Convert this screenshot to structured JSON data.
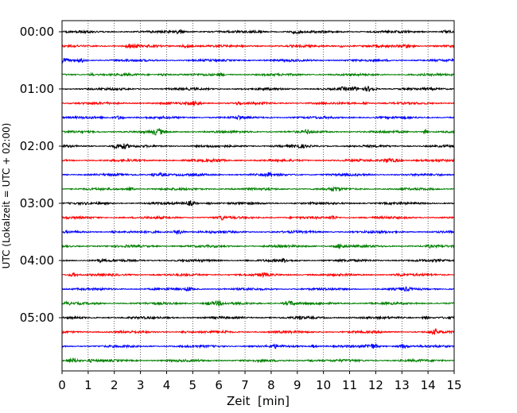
{
  "chart_data": {
    "type": "line",
    "title": "",
    "xlabel": "Zeit  [min]",
    "ylabel": "UTC (Lokalzeit = UTC + 02:00)",
    "xlim": [
      0,
      15
    ],
    "x_ticks": [
      "0",
      "1",
      "2",
      "3",
      "4",
      "5",
      "6",
      "7",
      "8",
      "9",
      "10",
      "11",
      "12",
      "13",
      "14",
      "15"
    ],
    "y_ticks": [
      "00:00",
      "01:00",
      "02:00",
      "03:00",
      "04:00",
      "05:00"
    ],
    "trace_interval_min": 15,
    "trace_count": 24,
    "color_cycle": [
      "#000000",
      "#ff0000",
      "#0000ff",
      "#008000"
    ],
    "grid": "vertical dotted lines at each minute",
    "series": [
      {
        "start": "00:00",
        "color": "#000000"
      },
      {
        "start": "00:15",
        "color": "#ff0000"
      },
      {
        "start": "00:30",
        "color": "#0000ff"
      },
      {
        "start": "00:45",
        "color": "#008000"
      },
      {
        "start": "01:00",
        "color": "#000000"
      },
      {
        "start": "01:15",
        "color": "#ff0000"
      },
      {
        "start": "01:30",
        "color": "#0000ff"
      },
      {
        "start": "01:45",
        "color": "#008000"
      },
      {
        "start": "02:00",
        "color": "#000000"
      },
      {
        "start": "02:15",
        "color": "#ff0000"
      },
      {
        "start": "02:30",
        "color": "#0000ff"
      },
      {
        "start": "02:45",
        "color": "#008000"
      },
      {
        "start": "03:00",
        "color": "#000000"
      },
      {
        "start": "03:15",
        "color": "#ff0000"
      },
      {
        "start": "03:30",
        "color": "#0000ff"
      },
      {
        "start": "03:45",
        "color": "#008000"
      },
      {
        "start": "04:00",
        "color": "#000000"
      },
      {
        "start": "04:15",
        "color": "#ff0000"
      },
      {
        "start": "04:30",
        "color": "#0000ff"
      },
      {
        "start": "04:45",
        "color": "#008000"
      },
      {
        "start": "05:00",
        "color": "#000000"
      },
      {
        "start": "05:15",
        "color": "#ff0000"
      },
      {
        "start": "05:30",
        "color": "#0000ff"
      },
      {
        "start": "05:45",
        "color": "#008000"
      }
    ]
  }
}
